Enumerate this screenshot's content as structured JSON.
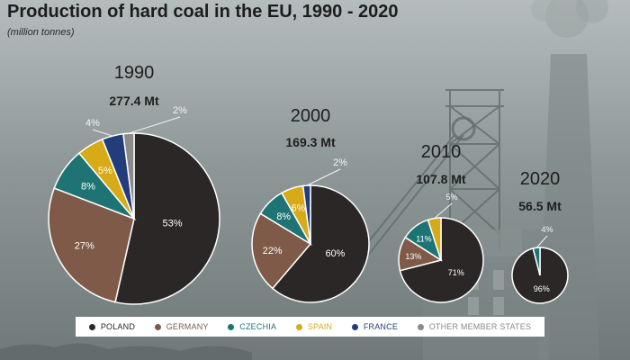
{
  "title": "Production of hard coal in the EU, 1990 - 2020",
  "subtitle": "(million tonnes)",
  "colors": {
    "poland": "#2b2726",
    "germany": "#7f5a48",
    "czechia": "#1e7474",
    "spain": "#d7aa18",
    "france": "#223d7b",
    "other": "#8a8a86"
  },
  "chart_data": {
    "type": "pie",
    "title": "Production of hard coal in the EU, 1990 - 2020",
    "unit": "million tonnes",
    "legend": [
      {
        "key": "poland",
        "label": "POLAND"
      },
      {
        "key": "germany",
        "label": "GERMANY"
      },
      {
        "key": "czechia",
        "label": "CZECHIA"
      },
      {
        "key": "spain",
        "label": "SPAIN"
      },
      {
        "key": "france",
        "label": "FRANCE"
      },
      {
        "key": "other",
        "label": "OTHER MEMBER STATES"
      }
    ],
    "pies": [
      {
        "year": "1990",
        "total": 277.4,
        "total_label": "277.4 Mt",
        "slices": [
          {
            "key": "poland",
            "value": 53,
            "label": "53%"
          },
          {
            "key": "germany",
            "value": 27,
            "label": "27%"
          },
          {
            "key": "czechia",
            "value": 8,
            "label": "8%"
          },
          {
            "key": "spain",
            "value": 5,
            "label": "5%"
          },
          {
            "key": "france",
            "value": 4,
            "label": "4%"
          },
          {
            "key": "other",
            "value": 2,
            "label": "2%"
          }
        ]
      },
      {
        "year": "2000",
        "total": 169.3,
        "total_label": "169.3 Mt",
        "slices": [
          {
            "key": "poland",
            "value": 60,
            "label": "60%"
          },
          {
            "key": "germany",
            "value": 22,
            "label": "22%"
          },
          {
            "key": "czechia",
            "value": 8,
            "label": "8%"
          },
          {
            "key": "spain",
            "value": 6,
            "label": "6%"
          },
          {
            "key": "france",
            "value": 2,
            "label": "2%"
          }
        ]
      },
      {
        "year": "2010",
        "total": 107.8,
        "total_label": "107.8 Mt",
        "slices": [
          {
            "key": "poland",
            "value": 71,
            "label": "71%"
          },
          {
            "key": "germany",
            "value": 13,
            "label": "13%"
          },
          {
            "key": "czechia",
            "value": 11,
            "label": "11%"
          },
          {
            "key": "spain",
            "value": 5,
            "label": "5%"
          }
        ]
      },
      {
        "year": "2020",
        "total": 56.5,
        "total_label": "56.5 Mt",
        "slices": [
          {
            "key": "poland",
            "value": 96,
            "label": "96%"
          },
          {
            "key": "czechia",
            "value": 4,
            "label": "4%"
          }
        ]
      }
    ]
  }
}
